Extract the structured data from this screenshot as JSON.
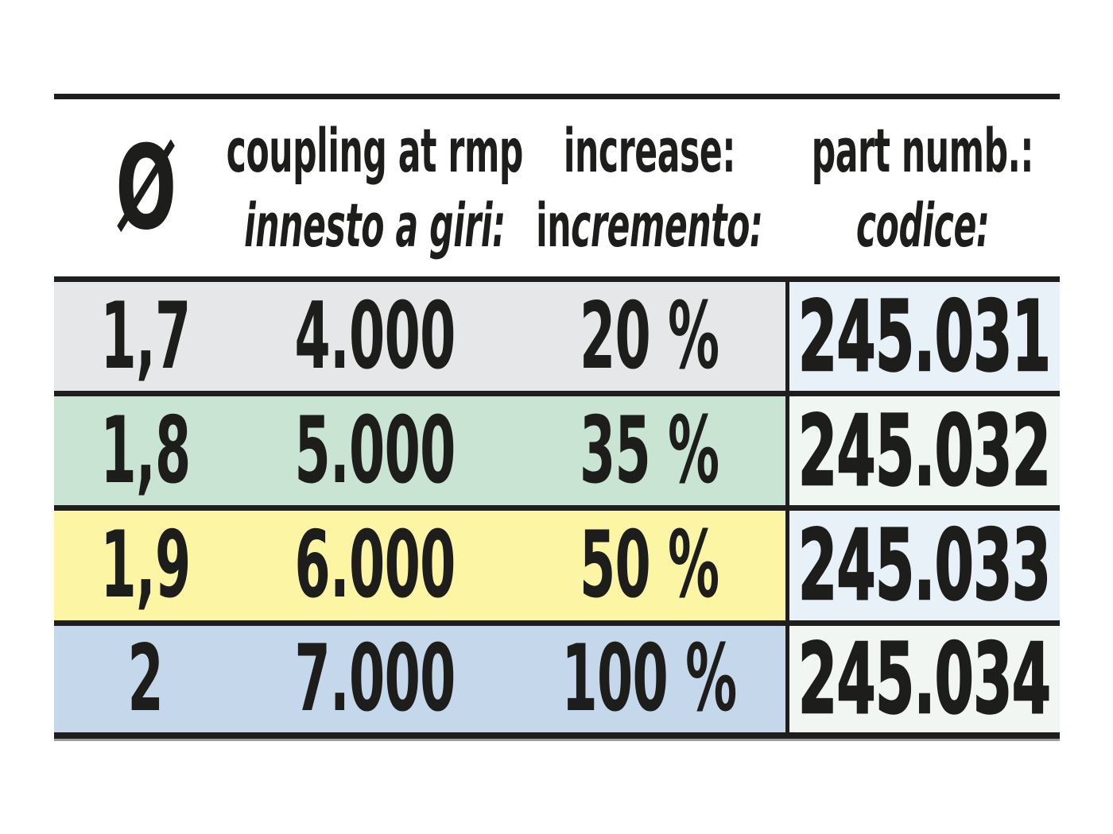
{
  "table": {
    "header": {
      "diameter_symbol": "Ø",
      "coupling_line1": "coupling at rmp",
      "coupling_line2": "innesto a giri:",
      "increase_line1": "increase:",
      "increase_line2_normal": "in",
      "increase_line2_italic": "cremento:",
      "part_line1": "part numb.:",
      "part_line2": "codice:"
    },
    "rows": [
      {
        "diameter": "1,7",
        "coupling": "4.000",
        "increase": "20 %",
        "part": "245.031",
        "row_bg": "#e6e7e8",
        "part_bg": "#e9f1f8"
      },
      {
        "diameter": "1,8",
        "coupling": "5.000",
        "increase": "35 %",
        "part": "245.032",
        "row_bg": "#c9e4d2",
        "part_bg": "#f0f7f2"
      },
      {
        "diameter": "1,9",
        "coupling": "6.000",
        "increase": "50 %",
        "part": "245.033",
        "row_bg": "#fcf5a4",
        "part_bg": "#e9f1f8"
      },
      {
        "diameter": "2",
        "coupling": "7.000",
        "increase": "100 %",
        "part": "245.034",
        "row_bg": "#c5d7eb",
        "part_bg": "#f1f6f3"
      }
    ],
    "colors": {
      "border_black": "#1e1e1e",
      "border_shadow": "#9c9c9c",
      "text": "#1d1d1b",
      "header_bg": "#ffffff"
    }
  }
}
